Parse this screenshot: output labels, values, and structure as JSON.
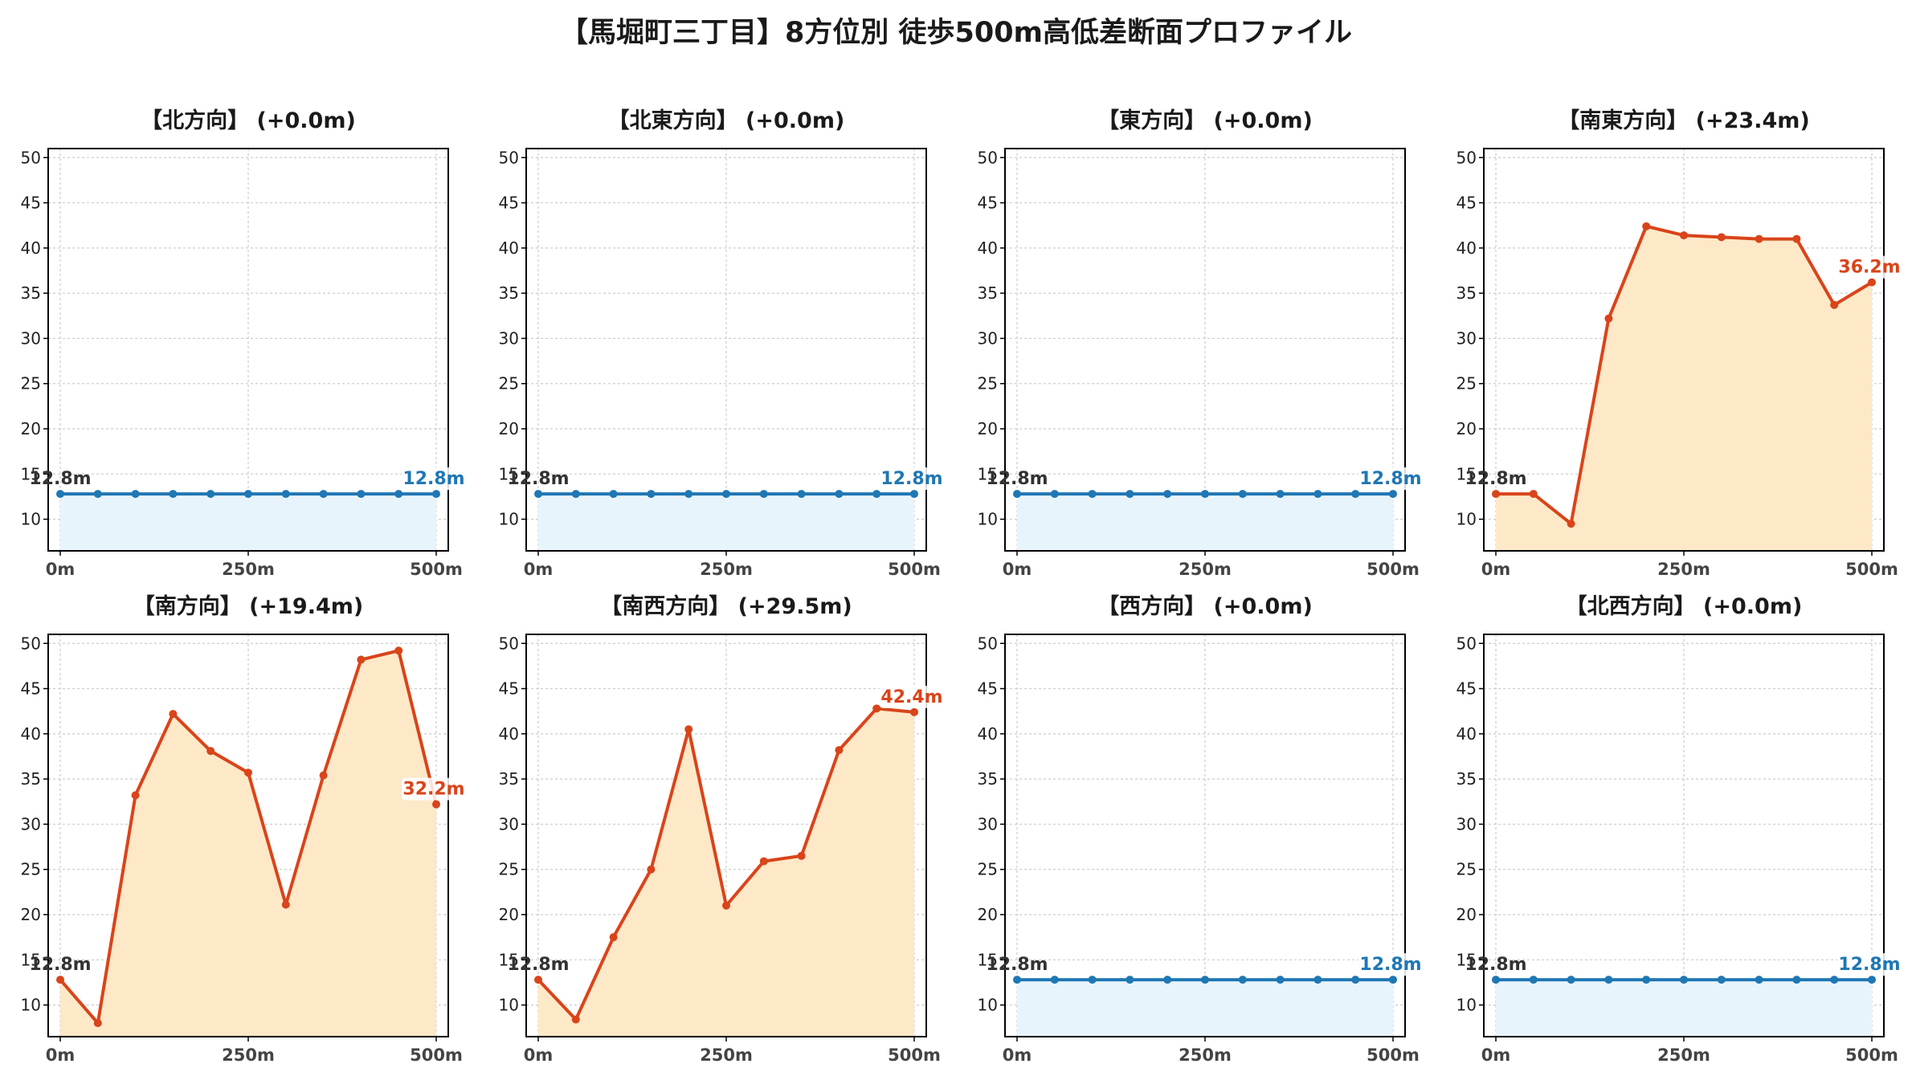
{
  "title": "【馬堀町三丁目】8方位別 徒歩500m高低差断面プロファイル",
  "colors": {
    "flat_line": "#1f77b4",
    "flat_fill": "#e8f4fb",
    "slope_line": "#d9441a",
    "slope_fill": "#fde8c8",
    "start_label": "#333333",
    "grid": "#cccccc"
  },
  "chart_data": [
    {
      "type": "area",
      "title": "【北方向】 (+0.0m)",
      "x": [
        0,
        50,
        100,
        150,
        200,
        250,
        300,
        350,
        400,
        450,
        500
      ],
      "values": [
        12.8,
        12.8,
        12.8,
        12.8,
        12.8,
        12.8,
        12.8,
        12.8,
        12.8,
        12.8,
        12.8
      ],
      "start_label": "12.8m",
      "end_label": "12.8m",
      "style": "flat",
      "xticks": [
        "0m",
        "250m",
        "500m"
      ],
      "yticks": [
        10,
        15,
        20,
        25,
        30,
        35,
        40,
        45,
        50
      ],
      "xlim": [
        0,
        500
      ],
      "ylim": [
        6.5,
        51
      ],
      "grid": true
    },
    {
      "type": "area",
      "title": "【北東方向】 (+0.0m)",
      "x": [
        0,
        50,
        100,
        150,
        200,
        250,
        300,
        350,
        400,
        450,
        500
      ],
      "values": [
        12.8,
        12.8,
        12.8,
        12.8,
        12.8,
        12.8,
        12.8,
        12.8,
        12.8,
        12.8,
        12.8
      ],
      "start_label": "12.8m",
      "end_label": "12.8m",
      "style": "flat",
      "xticks": [
        "0m",
        "250m",
        "500m"
      ],
      "yticks": [
        10,
        15,
        20,
        25,
        30,
        35,
        40,
        45,
        50
      ],
      "xlim": [
        0,
        500
      ],
      "ylim": [
        6.5,
        51
      ],
      "grid": true
    },
    {
      "type": "area",
      "title": "【東方向】 (+0.0m)",
      "x": [
        0,
        50,
        100,
        150,
        200,
        250,
        300,
        350,
        400,
        450,
        500
      ],
      "values": [
        12.8,
        12.8,
        12.8,
        12.8,
        12.8,
        12.8,
        12.8,
        12.8,
        12.8,
        12.8,
        12.8
      ],
      "start_label": "12.8m",
      "end_label": "12.8m",
      "style": "flat",
      "xticks": [
        "0m",
        "250m",
        "500m"
      ],
      "yticks": [
        10,
        15,
        20,
        25,
        30,
        35,
        40,
        45,
        50
      ],
      "xlim": [
        0,
        500
      ],
      "ylim": [
        6.5,
        51
      ],
      "grid": true
    },
    {
      "type": "area",
      "title": "【南東方向】 (+23.4m)",
      "x": [
        0,
        50,
        100,
        150,
        200,
        250,
        300,
        350,
        400,
        450,
        500
      ],
      "values": [
        12.8,
        12.8,
        9.5,
        32.2,
        42.4,
        41.4,
        41.2,
        41.0,
        41.0,
        33.7,
        36.2
      ],
      "start_label": "12.8m",
      "end_label": "36.2m",
      "style": "slope",
      "xticks": [
        "0m",
        "250m",
        "500m"
      ],
      "yticks": [
        10,
        15,
        20,
        25,
        30,
        35,
        40,
        45,
        50
      ],
      "xlim": [
        0,
        500
      ],
      "ylim": [
        6.5,
        51
      ],
      "grid": true
    },
    {
      "type": "area",
      "title": "【南方向】 (+19.4m)",
      "x": [
        0,
        50,
        100,
        150,
        200,
        250,
        300,
        350,
        400,
        450,
        500
      ],
      "values": [
        12.8,
        8.0,
        33.2,
        42.2,
        38.1,
        35.7,
        21.1,
        35.4,
        48.2,
        49.2,
        32.2
      ],
      "start_label": "12.8m",
      "end_label": "32.2m",
      "style": "slope",
      "xticks": [
        "0m",
        "250m",
        "500m"
      ],
      "yticks": [
        10,
        15,
        20,
        25,
        30,
        35,
        40,
        45,
        50
      ],
      "xlim": [
        0,
        500
      ],
      "ylim": [
        6.5,
        51
      ],
      "grid": true
    },
    {
      "type": "area",
      "title": "【南西方向】 (+29.5m)",
      "x": [
        0,
        50,
        100,
        150,
        200,
        250,
        300,
        350,
        400,
        450,
        500
      ],
      "values": [
        12.8,
        8.4,
        17.5,
        25.0,
        40.5,
        21.0,
        25.9,
        26.5,
        38.2,
        42.8,
        42.4
      ],
      "start_label": "12.8m",
      "end_label": "42.4m",
      "style": "slope",
      "xticks": [
        "0m",
        "250m",
        "500m"
      ],
      "yticks": [
        10,
        15,
        20,
        25,
        30,
        35,
        40,
        45,
        50
      ],
      "xlim": [
        0,
        500
      ],
      "ylim": [
        6.5,
        51
      ],
      "grid": true
    },
    {
      "type": "area",
      "title": "【西方向】 (+0.0m)",
      "x": [
        0,
        50,
        100,
        150,
        200,
        250,
        300,
        350,
        400,
        450,
        500
      ],
      "values": [
        12.8,
        12.8,
        12.8,
        12.8,
        12.8,
        12.8,
        12.8,
        12.8,
        12.8,
        12.8,
        12.8
      ],
      "start_label": "12.8m",
      "end_label": "12.8m",
      "style": "flat",
      "xticks": [
        "0m",
        "250m",
        "500m"
      ],
      "yticks": [
        10,
        15,
        20,
        25,
        30,
        35,
        40,
        45,
        50
      ],
      "xlim": [
        0,
        500
      ],
      "ylim": [
        6.5,
        51
      ],
      "grid": true
    },
    {
      "type": "area",
      "title": "【北西方向】 (+0.0m)",
      "x": [
        0,
        50,
        100,
        150,
        200,
        250,
        300,
        350,
        400,
        450,
        500
      ],
      "values": [
        12.8,
        12.8,
        12.8,
        12.8,
        12.8,
        12.8,
        12.8,
        12.8,
        12.8,
        12.8,
        12.8
      ],
      "start_label": "12.8m",
      "end_label": "12.8m",
      "style": "flat",
      "xticks": [
        "0m",
        "250m",
        "500m"
      ],
      "yticks": [
        10,
        15,
        20,
        25,
        30,
        35,
        40,
        45,
        50
      ],
      "xlim": [
        0,
        500
      ],
      "ylim": [
        6.5,
        51
      ],
      "grid": true
    }
  ]
}
